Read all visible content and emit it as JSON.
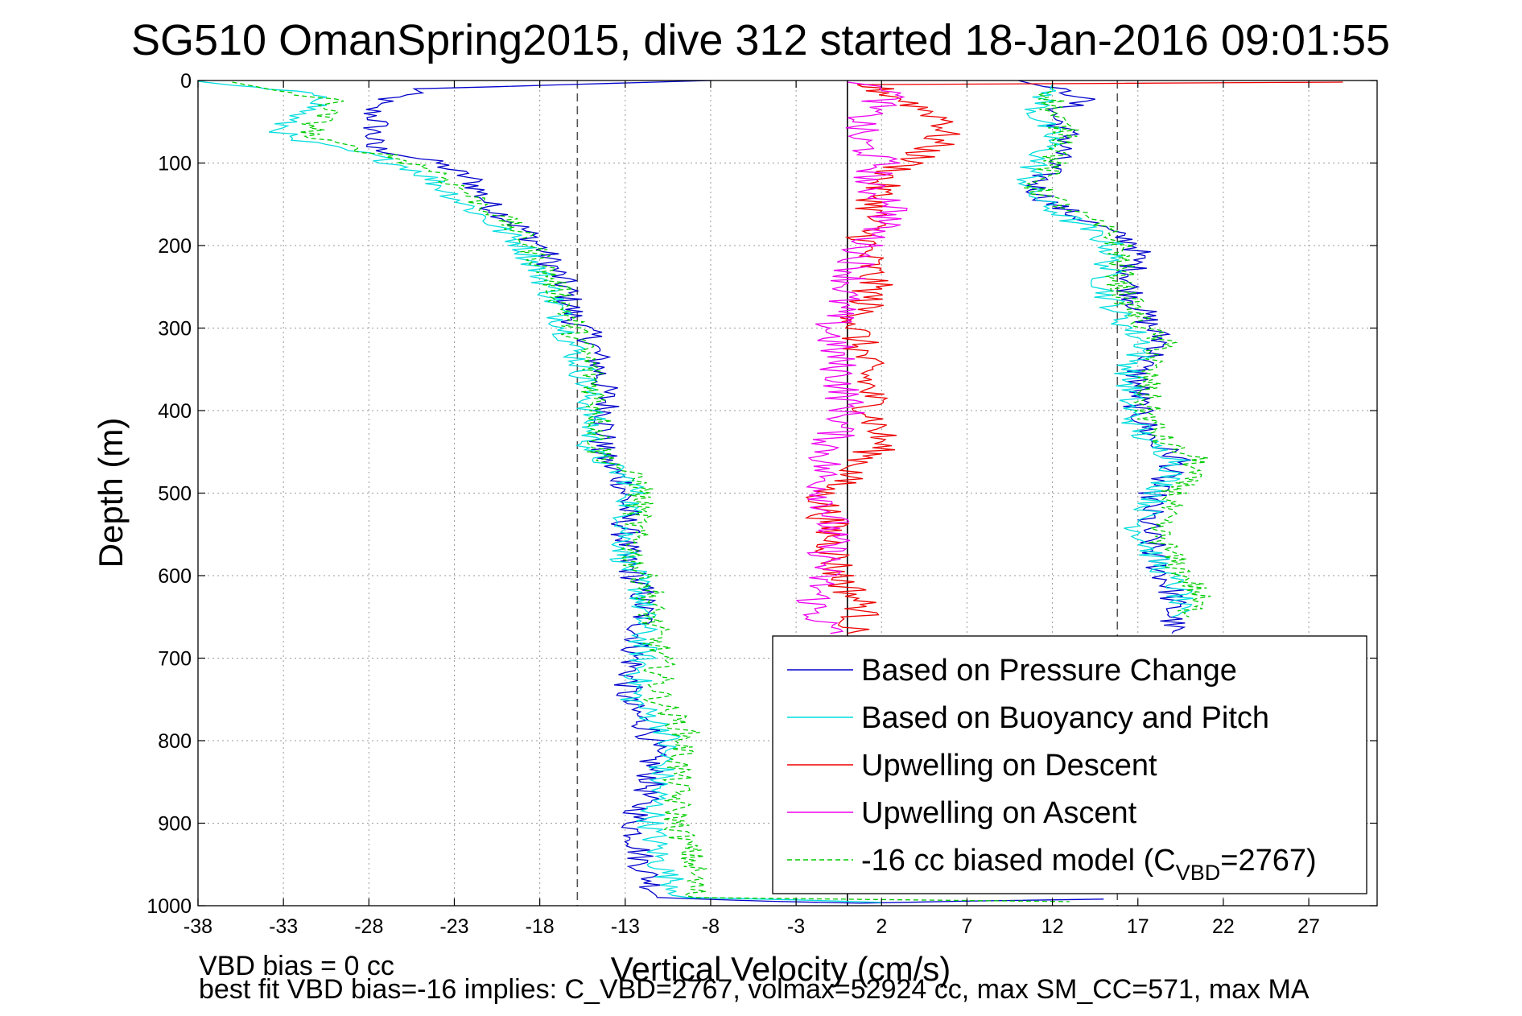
{
  "chart_data": {
    "type": "line",
    "title": "SG510 OmanSpring2015, dive 312 started 18-Jan-2016 09:01:55",
    "xlabel": "Vertical Velocity (cm/s)",
    "ylabel": "Depth (m)",
    "xlim": [
      -38,
      31
    ],
    "ylim": [
      1000,
      0
    ],
    "y_reversed": true,
    "xticks": [
      "-38",
      "-33",
      "-28",
      "-23",
      "-18",
      "-13",
      "-8",
      "-3",
      "2",
      "7",
      "12",
      "17",
      "22",
      "27"
    ],
    "yticks": [
      "0",
      "100",
      "200",
      "300",
      "400",
      "500",
      "600",
      "700",
      "800",
      "900",
      "1000"
    ],
    "grid": true,
    "legend_position": "bottom-right",
    "reference_lines": [
      {
        "x": -15.8,
        "style": "dashed",
        "color": "#555555"
      },
      {
        "x": 0,
        "style": "solid",
        "color": "#000000"
      },
      {
        "x": 15.8,
        "style": "dashed",
        "color": "#555555"
      }
    ],
    "series": [
      {
        "name": "Based on Pressure Change",
        "color": "#0000cc",
        "style": "solid",
        "descent": [
          [
            -8,
            0
          ],
          [
            -25,
            10
          ],
          [
            -28,
            30
          ],
          [
            -27.5,
            50
          ],
          [
            -28,
            80
          ],
          [
            -24,
            100
          ],
          [
            -22,
            120
          ],
          [
            -21,
            150
          ],
          [
            -19,
            180
          ],
          [
            -18,
            200
          ],
          [
            -16.5,
            250
          ],
          [
            -16,
            290
          ],
          [
            -15,
            310
          ],
          [
            -14.5,
            350
          ],
          [
            -14,
            400
          ],
          [
            -14.5,
            450
          ],
          [
            -13,
            490
          ],
          [
            -13,
            550
          ],
          [
            -13,
            580
          ],
          [
            -12,
            620
          ],
          [
            -12,
            650
          ],
          [
            -12.5,
            700
          ],
          [
            -13,
            750
          ],
          [
            -11.5,
            790
          ],
          [
            -11.5,
            850
          ],
          [
            -12.5,
            900
          ],
          [
            -12,
            950
          ],
          [
            -11,
            990
          ],
          [
            0,
            997
          ],
          [
            15,
            992
          ]
        ],
        "ascent": [
          [
            10,
            0
          ],
          [
            14,
            20
          ],
          [
            12,
            40
          ],
          [
            13,
            70
          ],
          [
            12,
            100
          ],
          [
            11,
            130
          ],
          [
            12,
            150
          ],
          [
            15,
            180
          ],
          [
            17,
            200
          ],
          [
            16.5,
            250
          ],
          [
            17.5,
            290
          ],
          [
            18.5,
            320
          ],
          [
            17,
            350
          ],
          [
            17,
            400
          ],
          [
            18,
            440
          ],
          [
            19.5,
            460
          ],
          [
            18,
            490
          ],
          [
            17.5,
            540
          ],
          [
            18,
            580
          ],
          [
            19,
            620
          ],
          [
            19,
            650
          ],
          [
            19,
            670
          ]
        ]
      },
      {
        "name": "Based on Buoyancy and Pitch",
        "color": "#00dddd",
        "style": "solid",
        "descent": [
          [
            -38,
            1
          ],
          [
            -30,
            20
          ],
          [
            -33,
            50
          ],
          [
            -33,
            70
          ],
          [
            -28,
            90
          ],
          [
            -25,
            110
          ],
          [
            -23,
            140
          ],
          [
            -21,
            170
          ],
          [
            -19,
            200
          ],
          [
            -17.5,
            250
          ],
          [
            -16.5,
            300
          ],
          [
            -15.5,
            350
          ],
          [
            -15,
            400
          ],
          [
            -15,
            450
          ],
          [
            -12.5,
            490
          ],
          [
            -13,
            550
          ],
          [
            -13,
            580
          ],
          [
            -12,
            620
          ],
          [
            -12,
            650
          ],
          [
            -12,
            700
          ],
          [
            -12.5,
            750
          ],
          [
            -10.5,
            790
          ],
          [
            -11,
            850
          ],
          [
            -11.5,
            900
          ],
          [
            -11,
            950
          ],
          [
            -9.5,
            990
          ],
          [
            2,
            996
          ]
        ],
        "ascent": [
          [
            12,
            5
          ],
          [
            11,
            40
          ],
          [
            12,
            70
          ],
          [
            11,
            100
          ],
          [
            10.5,
            130
          ],
          [
            11.5,
            150
          ],
          [
            14,
            180
          ],
          [
            15.5,
            200
          ],
          [
            15,
            250
          ],
          [
            16,
            290
          ],
          [
            17.5,
            320
          ],
          [
            16.5,
            350
          ],
          [
            16.5,
            400
          ],
          [
            17.5,
            440
          ],
          [
            19.5,
            460
          ],
          [
            18.5,
            490
          ],
          [
            17,
            540
          ],
          [
            18,
            580
          ],
          [
            19.5,
            620
          ],
          [
            19,
            650
          ]
        ]
      },
      {
        "name": "Upwelling on Descent",
        "color": "#ee0000",
        "style": "solid",
        "profile": [
          [
            29,
            2
          ],
          [
            1,
            5
          ],
          [
            3,
            20
          ],
          [
            6,
            50
          ],
          [
            5,
            80
          ],
          [
            2,
            120
          ],
          [
            1.5,
            160
          ],
          [
            1,
            200
          ],
          [
            1.5,
            250
          ],
          [
            0.5,
            300
          ],
          [
            1,
            350
          ],
          [
            1.5,
            400
          ],
          [
            2,
            440
          ],
          [
            0,
            480
          ],
          [
            -1.5,
            500
          ],
          [
            -1,
            550
          ],
          [
            -0.5,
            600
          ],
          [
            1,
            640
          ],
          [
            0,
            670
          ]
        ]
      },
      {
        "name": "Upwelling on Ascent",
        "color": "#ee00ee",
        "style": "solid",
        "profile": [
          [
            0,
            2
          ],
          [
            3,
            10
          ],
          [
            1,
            40
          ],
          [
            0.5,
            70
          ],
          [
            2,
            100
          ],
          [
            1,
            130
          ],
          [
            3,
            150
          ],
          [
            1,
            200
          ],
          [
            0,
            250
          ],
          [
            -1,
            300
          ],
          [
            -0.5,
            350
          ],
          [
            0,
            400
          ],
          [
            -1,
            440
          ],
          [
            -1.5,
            480
          ],
          [
            -1,
            520
          ],
          [
            -1,
            560
          ],
          [
            -1.5,
            600
          ],
          [
            -2,
            640
          ],
          [
            -1,
            670
          ]
        ]
      },
      {
        "name": "-16 cc biased model (C",
        "name_subscript": "VBD",
        "name_suffix": "=2767)",
        "color": "#00cc00",
        "style": "dashed",
        "descent": [
          [
            -36,
            2
          ],
          [
            -30,
            25
          ],
          [
            -31,
            50
          ],
          [
            -31.5,
            70
          ],
          [
            -27,
            90
          ],
          [
            -24,
            110
          ],
          [
            -22,
            140
          ],
          [
            -20,
            170
          ],
          [
            -18.5,
            200
          ],
          [
            -17,
            250
          ],
          [
            -16,
            300
          ],
          [
            -15,
            350
          ],
          [
            -14.5,
            400
          ],
          [
            -14.5,
            450
          ],
          [
            -12,
            490
          ],
          [
            -12.5,
            550
          ],
          [
            -12.5,
            580
          ],
          [
            -11.5,
            620
          ],
          [
            -11.5,
            650
          ],
          [
            -11,
            700
          ],
          [
            -11,
            750
          ],
          [
            -9.5,
            790
          ],
          [
            -10,
            850
          ],
          [
            -10,
            900
          ],
          [
            -9,
            950
          ],
          [
            -9,
            990
          ],
          [
            13,
            995
          ]
        ],
        "ascent": [
          [
            12,
            5
          ],
          [
            12,
            40
          ],
          [
            13,
            70
          ],
          [
            12,
            100
          ],
          [
            11,
            130
          ],
          [
            12.5,
            150
          ],
          [
            15,
            180
          ],
          [
            16,
            200
          ],
          [
            16,
            250
          ],
          [
            17,
            290
          ],
          [
            18.5,
            320
          ],
          [
            17.5,
            350
          ],
          [
            17.5,
            400
          ],
          [
            18.5,
            440
          ],
          [
            20.5,
            460
          ],
          [
            19.5,
            490
          ],
          [
            18,
            540
          ],
          [
            19,
            580
          ],
          [
            20.5,
            620
          ],
          [
            20,
            650
          ]
        ]
      }
    ]
  },
  "footer": {
    "line1": "VBD bias = 0 cc",
    "line2": "best fit VBD bias=-16 implies: C_VBD=2767, volmax=52924 cc, max SM_CC=571, max MA"
  }
}
